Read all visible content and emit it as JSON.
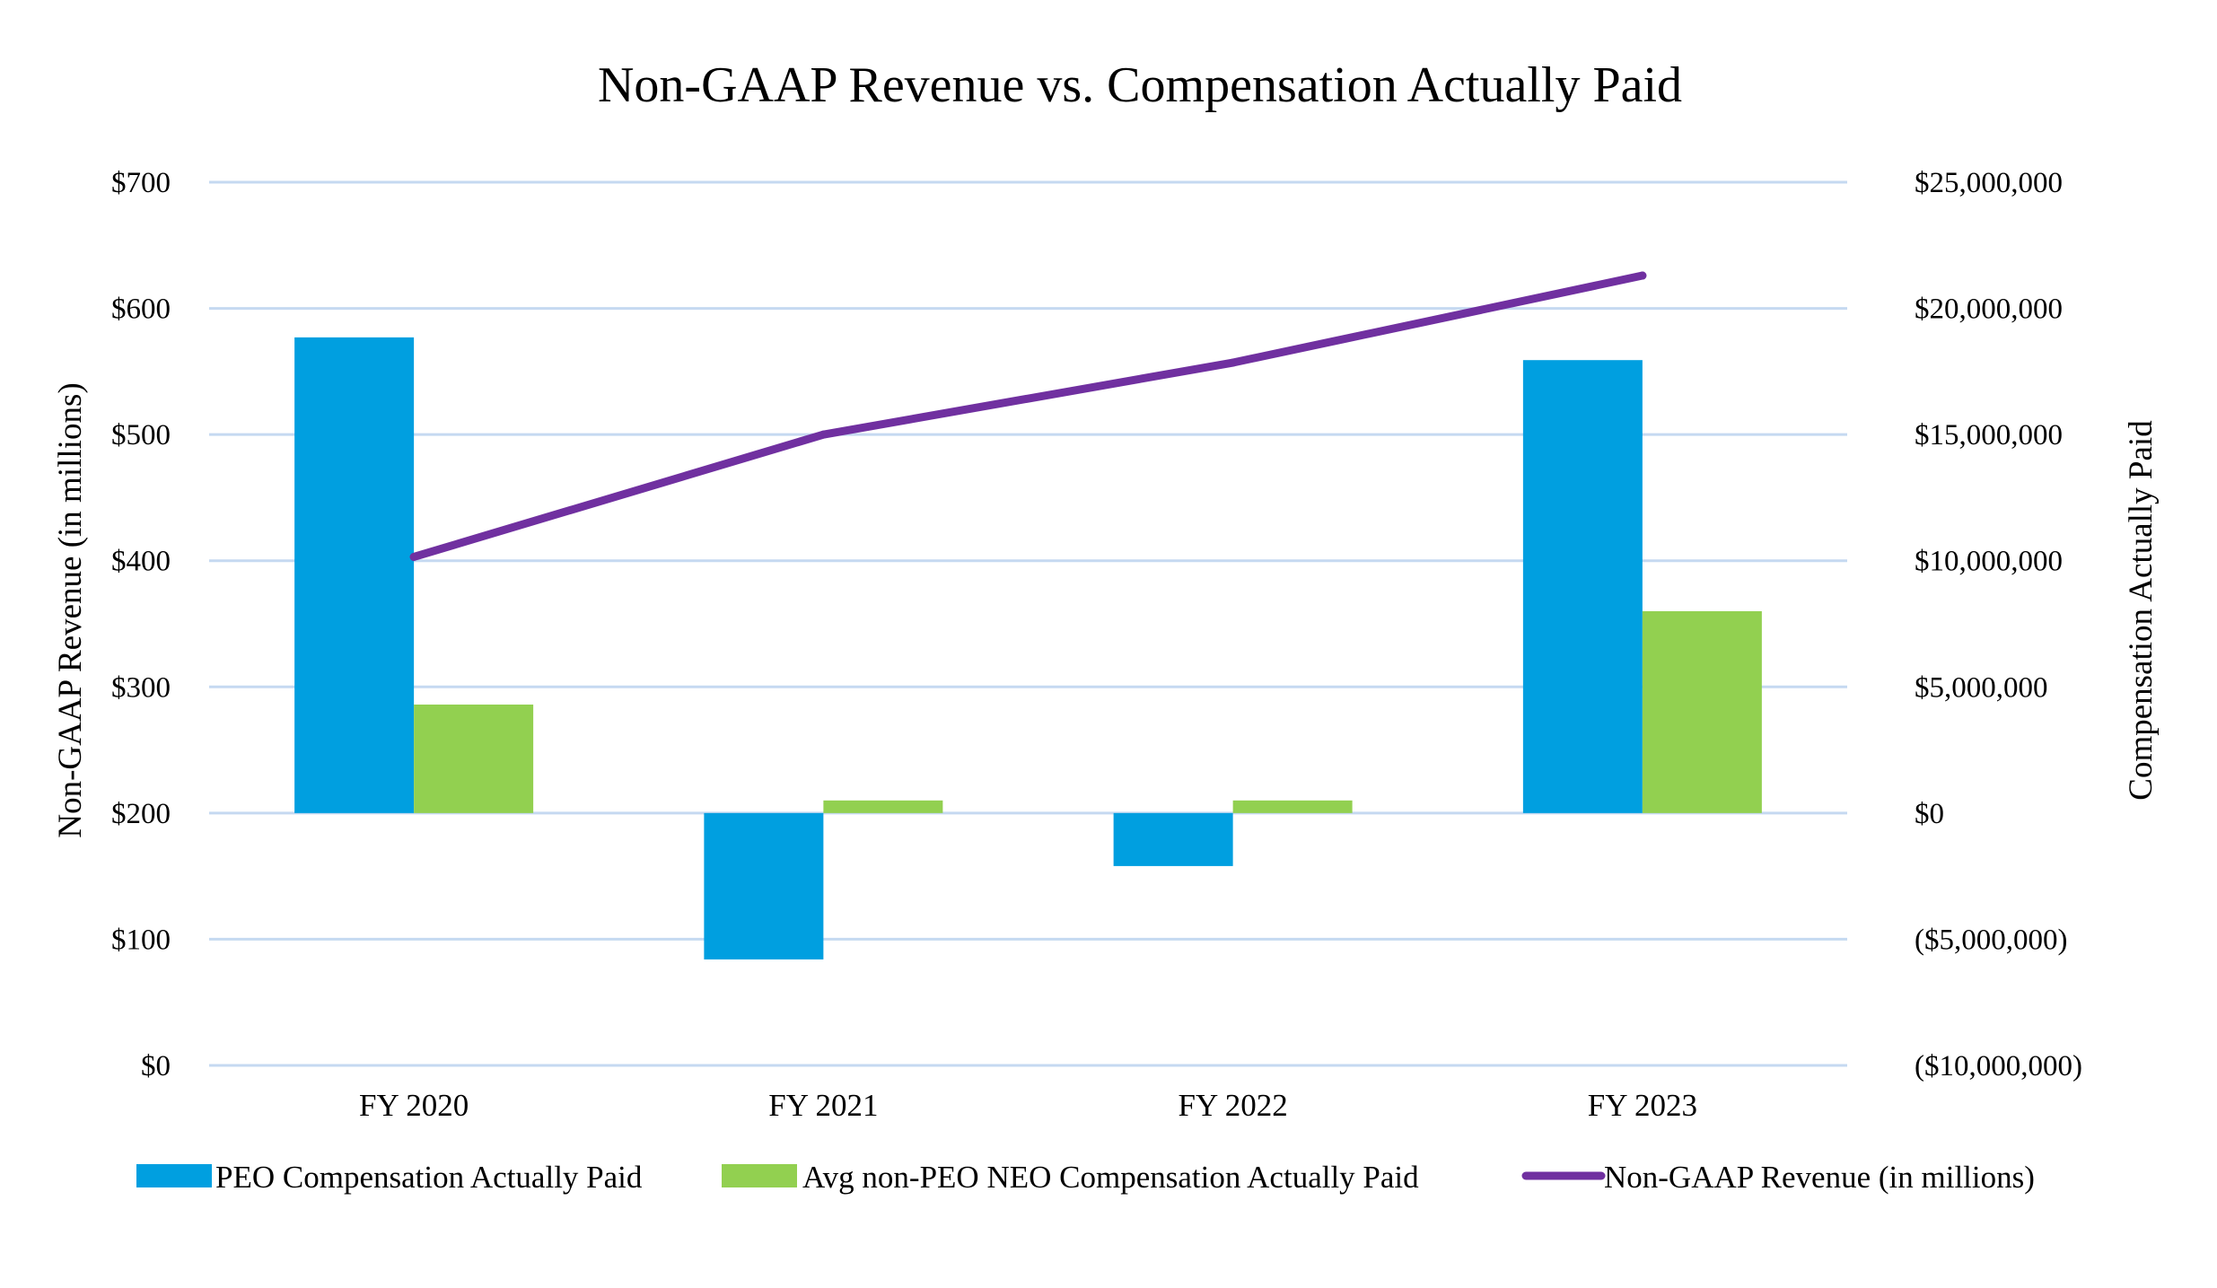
{
  "chart_data": {
    "type": "bar",
    "title": "Non-GAAP Revenue vs. Compensation Actually Paid",
    "categories": [
      "FY 2020",
      "FY 2021",
      "FY 2022",
      "FY 2023"
    ],
    "left_axis": {
      "label": "Non-GAAP Revenue (in millions)",
      "range": [
        0,
        700
      ],
      "ticks": [
        0,
        100,
        200,
        300,
        400,
        500,
        600,
        700
      ],
      "tick_labels": [
        "$0",
        "$100",
        "$200",
        "$300",
        "$400",
        "$500",
        "$600",
        "$700"
      ]
    },
    "right_axis": {
      "label": "Compensation  Actually Paid",
      "range": [
        -10000000,
        25000000
      ],
      "ticks": [
        -10000000,
        -5000000,
        0,
        5000000,
        10000000,
        15000000,
        20000000,
        25000000
      ],
      "tick_labels": [
        "($10,000,000)",
        "($5,000,000)",
        "$0",
        "$5,000,000",
        "$10,000,000",
        "$15,000,000",
        "$20,000,000",
        "$25,000,000"
      ]
    },
    "series": [
      {
        "name": "PEO Compensation Actually Paid",
        "type": "bar",
        "axis": "right",
        "color": "#009fe0",
        "values": [
          18850000,
          -5800000,
          -2100000,
          17950000
        ]
      },
      {
        "name": "Avg non-PEO NEO Compensation Actually Paid",
        "type": "bar",
        "axis": "right",
        "color": "#92d050",
        "values": [
          4300000,
          500000,
          500000,
          8000000
        ]
      },
      {
        "name": "Non-GAAP Revenue (in millions)",
        "type": "line",
        "axis": "left",
        "color": "#7030a0",
        "values": [
          403,
          500,
          557,
          626
        ]
      }
    ],
    "grid": true,
    "legend": "bottom"
  }
}
